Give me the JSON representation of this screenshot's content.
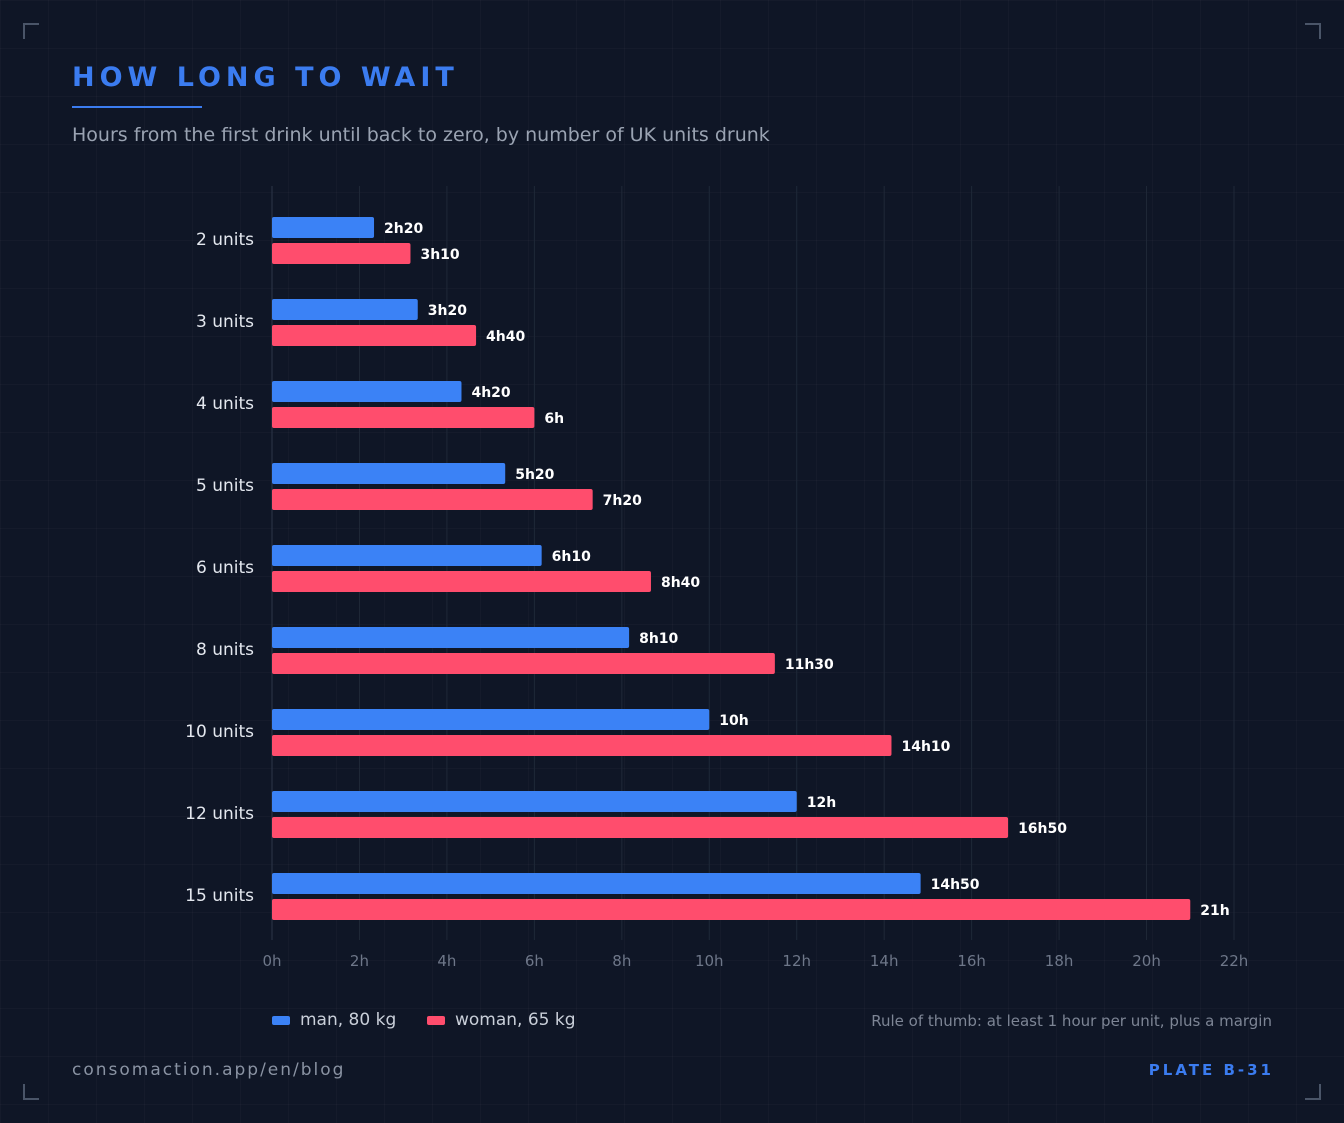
{
  "header": {
    "title": "HOW LONG TO WAIT",
    "subtitle": "Hours from the first drink until back to zero, by number of UK units drunk"
  },
  "chart_data": {
    "type": "bar",
    "orientation": "horizontal",
    "categories": [
      "2 units",
      "3 units",
      "4 units",
      "5 units",
      "6 units",
      "8 units",
      "10 units",
      "12 units",
      "15 units"
    ],
    "series": [
      {
        "name": "man, 80 kg",
        "color": "#3b82f6",
        "values": [
          2.3333,
          3.3333,
          4.3333,
          5.3333,
          6.1667,
          8.1667,
          10,
          12,
          14.8333
        ],
        "labels": [
          "2h20",
          "3h20",
          "4h20",
          "5h20",
          "6h10",
          "8h10",
          "10h",
          "12h",
          "14h50"
        ]
      },
      {
        "name": "woman, 65 kg",
        "color": "#ff4d6d",
        "values": [
          3.1667,
          4.6667,
          6,
          7.3333,
          8.6667,
          11.5,
          14.1667,
          16.8333,
          21
        ],
        "labels": [
          "3h10",
          "4h40",
          "6h",
          "7h20",
          "8h40",
          "11h30",
          "14h10",
          "16h50",
          "21h"
        ]
      }
    ],
    "x_ticks": [
      0,
      2,
      4,
      6,
      8,
      10,
      12,
      14,
      16,
      18,
      20,
      22
    ],
    "x_tick_labels": [
      "0h",
      "2h",
      "4h",
      "6h",
      "8h",
      "10h",
      "12h",
      "14h",
      "16h",
      "18h",
      "20h",
      "22h"
    ],
    "xlim": [
      0,
      22
    ],
    "grid": true,
    "legend_position": "bottom-left"
  },
  "footnote": "Rule of thumb: at least 1 hour per unit, plus a margin",
  "footer": {
    "url": "consomaction.app/en/blog",
    "plate": "PLATE B-31"
  }
}
